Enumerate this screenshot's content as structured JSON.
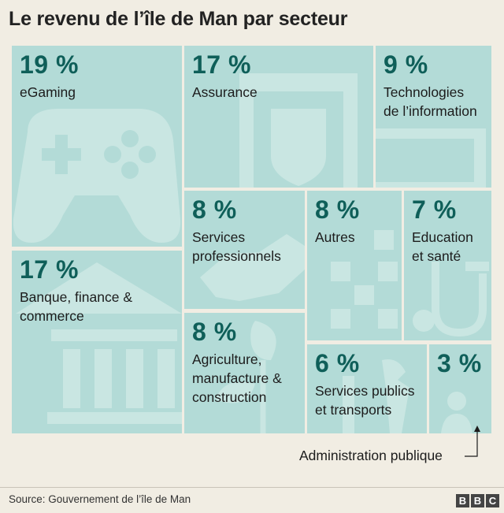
{
  "title": "Le revenu de l’île de Man par secteur",
  "chart_data": {
    "type": "treemap",
    "title": "Le revenu de l’île de Man par secteur",
    "unit": "%",
    "items": [
      {
        "label": "eGaming",
        "value": 19,
        "value_text": "19 %"
      },
      {
        "label": "Assurance",
        "value": 17,
        "value_text": "17 %"
      },
      {
        "label": "Technologies\nde l’information",
        "value": 9,
        "value_text": "9 %"
      },
      {
        "label": "Banque, finance &\ncommerce",
        "value": 17,
        "value_text": "17 %"
      },
      {
        "label": "Services\nprofessionnels",
        "value": 8,
        "value_text": "8 %"
      },
      {
        "label": "Autres",
        "value": 8,
        "value_text": "8 %"
      },
      {
        "label": "Education\net santé",
        "value": 7,
        "value_text": "7 %"
      },
      {
        "label": "Agriculture,\nmanufacture &\nconstruction",
        "value": 8,
        "value_text": "8 %"
      },
      {
        "label": "Services publics\net transports",
        "value": 6,
        "value_text": "6 %"
      },
      {
        "label": "Administration publique",
        "value": 3,
        "value_text": "3 %"
      }
    ],
    "annotation": "Administration publique"
  },
  "footer": {
    "source": "Source: Gouvernement de l’île de Man",
    "logo_letters": [
      "B",
      "B",
      "C"
    ]
  },
  "colors": {
    "tile": "#b3dbd7",
    "icon": "#c9e6e2",
    "value_text": "#0f5f59",
    "background": "#f1ede3"
  }
}
